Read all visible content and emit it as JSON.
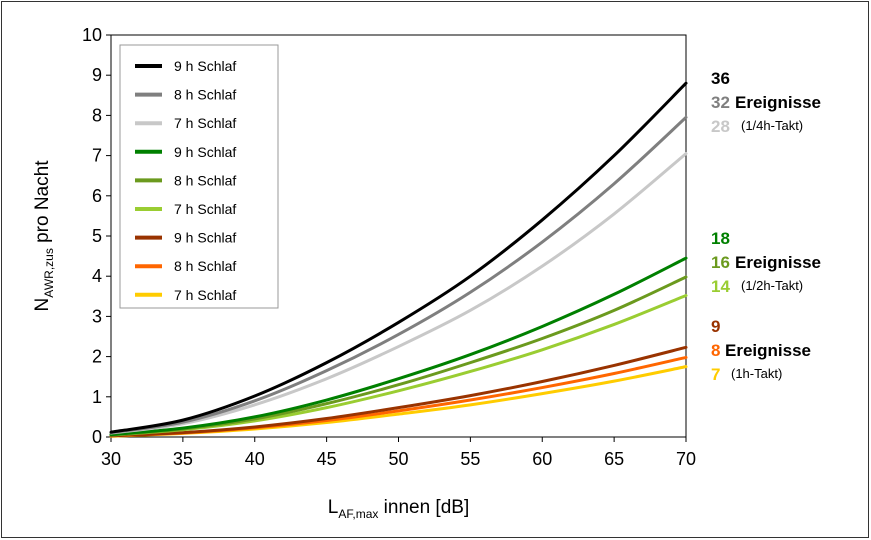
{
  "chart_data": {
    "type": "line",
    "x": [
      30,
      35,
      40,
      45,
      50,
      55,
      60,
      65,
      70
    ],
    "xlim": [
      30,
      70
    ],
    "ylim": [
      0,
      10
    ],
    "xticks": [
      "30",
      "35",
      "40",
      "45",
      "50",
      "55",
      "60",
      "65",
      "70"
    ],
    "yticks": [
      "0",
      "1",
      "2",
      "3",
      "4",
      "5",
      "6",
      "7",
      "8",
      "9",
      "10"
    ],
    "ylabel": {
      "main": "N",
      "sub": "AWR,zus",
      "rest": " pro Nacht"
    },
    "xlabel": {
      "main": "L",
      "sub": "AF,max",
      "rest": " innen [dB]"
    },
    "grid": false,
    "legend_position": "top-left",
    "series": [
      {
        "name": "9 h Schlaf",
        "color": "#000000",
        "values": [
          0.12,
          0.42,
          1.02,
          1.85,
          2.85,
          4.0,
          5.4,
          7.0,
          8.8
        ]
      },
      {
        "name": "8 h Schlaf",
        "color": "#7f7f7f",
        "values": [
          0.11,
          0.37,
          0.9,
          1.65,
          2.55,
          3.6,
          4.85,
          6.3,
          7.95
        ]
      },
      {
        "name": "7 h Schlaf",
        "color": "#c8c8c8",
        "values": [
          0.1,
          0.33,
          0.8,
          1.45,
          2.25,
          3.15,
          4.25,
          5.55,
          7.05
        ]
      },
      {
        "name": "9 h Schlaf",
        "color": "#008000",
        "values": [
          0.06,
          0.22,
          0.5,
          0.92,
          1.45,
          2.05,
          2.75,
          3.55,
          4.45
        ]
      },
      {
        "name": "8 h Schlaf",
        "color": "#6b9a1e",
        "values": [
          0.05,
          0.2,
          0.45,
          0.83,
          1.3,
          1.85,
          2.45,
          3.15,
          3.98
        ]
      },
      {
        "name": "7 h Schlaf",
        "color": "#9acd32",
        "values": [
          0.05,
          0.18,
          0.4,
          0.73,
          1.15,
          1.63,
          2.17,
          2.8,
          3.52
        ]
      },
      {
        "name": "9 h Schlaf",
        "color": "#993300",
        "values": [
          0.03,
          0.11,
          0.25,
          0.46,
          0.73,
          1.03,
          1.38,
          1.78,
          2.23
        ]
      },
      {
        "name": "8 h Schlaf",
        "color": "#ff6600",
        "values": [
          0.03,
          0.1,
          0.23,
          0.41,
          0.65,
          0.92,
          1.23,
          1.58,
          1.98
        ]
      },
      {
        "name": "7 h Schlaf",
        "color": "#ffcc00",
        "values": [
          0.02,
          0.09,
          0.2,
          0.36,
          0.57,
          0.8,
          1.08,
          1.39,
          1.75
        ]
      }
    ],
    "annotations": [
      {
        "lines": [
          {
            "num": "36",
            "color": "#000000",
            "word": ""
          },
          {
            "num": "32",
            "color": "#7f7f7f",
            "word": "Ereignisse"
          },
          {
            "num": "28",
            "color": "#c8c8c8",
            "word": "(1/4h-Takt)"
          }
        ]
      },
      {
        "lines": [
          {
            "num": "18",
            "color": "#008000",
            "word": ""
          },
          {
            "num": "16",
            "color": "#6b9a1e",
            "word": "Ereignisse"
          },
          {
            "num": "14",
            "color": "#9acd32",
            "word": "(1/2h-Takt)"
          }
        ]
      },
      {
        "lines": [
          {
            "num": "9",
            "color": "#993300",
            "word": ""
          },
          {
            "num": "8",
            "color": "#ff6600",
            "word": "Ereignisse"
          },
          {
            "num": "7",
            "color": "#ffcc00",
            "word": "(1h-Takt)"
          }
        ]
      }
    ]
  }
}
